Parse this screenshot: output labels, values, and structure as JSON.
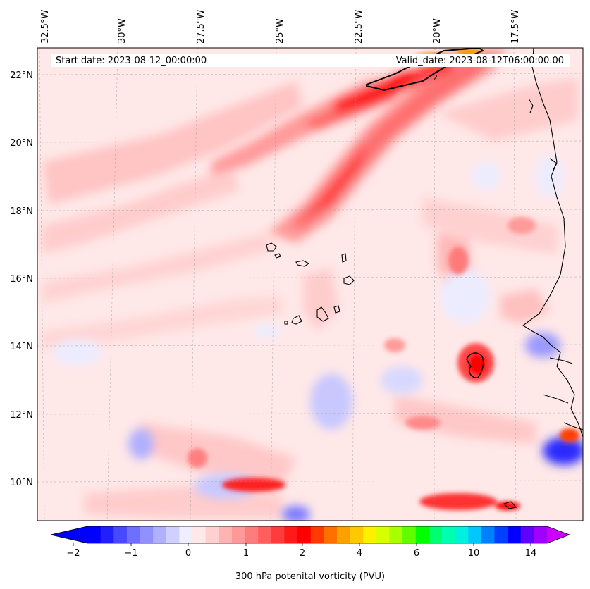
{
  "header": {
    "start_date": "Start date: 2023-08-12_00:00:00",
    "valid_date": "Valid_date: 2023-08-12T06:00:00.00"
  },
  "map": {
    "lon_ticks": [
      "32.5°W",
      "30°W",
      "27.5°W",
      "25°W",
      "22.5°W",
      "20°W",
      "17.5°W"
    ],
    "lat_ticks": [
      "22°N",
      "20°N",
      "18°N",
      "16°N",
      "14°N",
      "12°N",
      "10°N"
    ],
    "contour_label": "2",
    "lat_range": [
      8.9,
      22.8
    ],
    "lon_range": [
      -33.0,
      -15.2
    ]
  },
  "colorbar": {
    "label": "300 hPa potenital vorticity (PVU)",
    "tick_labels": [
      "−2",
      "−1",
      "0",
      "1",
      "2",
      "4",
      "6",
      "10",
      "14"
    ],
    "colors": [
      "#0000ff",
      "#2020ff",
      "#4848ff",
      "#6e6eff",
      "#9090ff",
      "#b0b0ff",
      "#d0d0ff",
      "#eeeeff",
      "#ffe8e8",
      "#ffd0d0",
      "#ffb4b4",
      "#ff9898",
      "#ff7c7c",
      "#ff5e5e",
      "#ff3c3c",
      "#ff1a1a",
      "#ff0000",
      "#ff3a00",
      "#ff7000",
      "#ffa000",
      "#ffc800",
      "#fff000",
      "#d8ff00",
      "#a8ff00",
      "#60ff00",
      "#00ff00",
      "#00ff70",
      "#00ffb0",
      "#00f0e0",
      "#00c8ff",
      "#0080ff",
      "#0040ff",
      "#0000ff",
      "#6000ff",
      "#a000ff"
    ],
    "under_color": "#0000ff",
    "over_color": "#cc00ff"
  }
}
